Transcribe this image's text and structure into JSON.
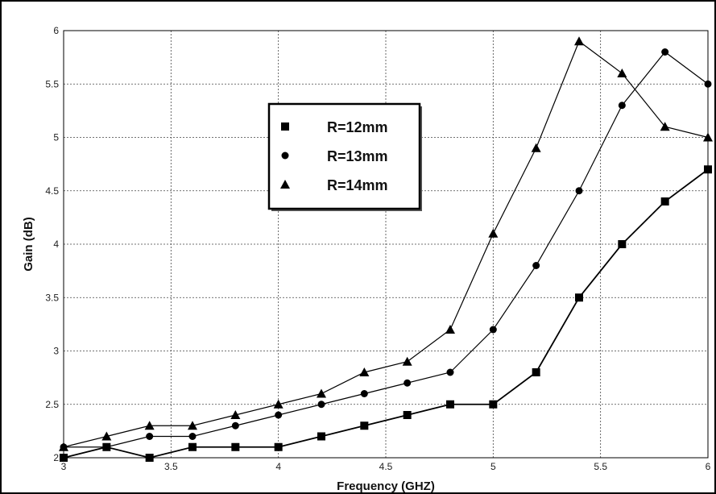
{
  "chart_data": {
    "type": "line",
    "title": "",
    "xlabel": "Frequency (GHZ)",
    "ylabel": "Gain (dB)",
    "xlim": [
      3,
      6
    ],
    "ylim": [
      2,
      6
    ],
    "xticks": [
      "3",
      "3.5",
      "4",
      "4.5",
      "5",
      "5.5",
      "6"
    ],
    "yticks": [
      "2",
      "2.5",
      "3",
      "3.5",
      "4",
      "4.5",
      "5",
      "5.5",
      "6"
    ],
    "grid": true,
    "legend_position": "upper-center",
    "x": [
      3.0,
      3.2,
      3.4,
      3.6,
      3.8,
      4.0,
      4.2,
      4.4,
      4.6,
      4.8,
      5.0,
      5.2,
      5.4,
      5.6,
      5.8,
      6.0
    ],
    "series": [
      {
        "name": "R=12mm",
        "marker": "square",
        "values": [
          2.0,
          2.1,
          2.0,
          2.1,
          2.1,
          2.1,
          2.2,
          2.3,
          2.4,
          2.5,
          2.5,
          2.8,
          3.5,
          4.0,
          4.4,
          4.7
        ]
      },
      {
        "name": "R=13mm",
        "marker": "circle",
        "values": [
          2.1,
          2.1,
          2.2,
          2.2,
          2.3,
          2.4,
          2.5,
          2.6,
          2.7,
          2.8,
          3.2,
          3.8,
          4.5,
          5.3,
          5.8,
          5.5
        ]
      },
      {
        "name": "R=14mm",
        "marker": "triangle",
        "values": [
          2.1,
          2.2,
          2.3,
          2.3,
          2.4,
          2.5,
          2.6,
          2.8,
          2.9,
          3.2,
          4.1,
          4.9,
          5.9,
          5.6,
          5.1,
          5.0
        ]
      }
    ]
  }
}
